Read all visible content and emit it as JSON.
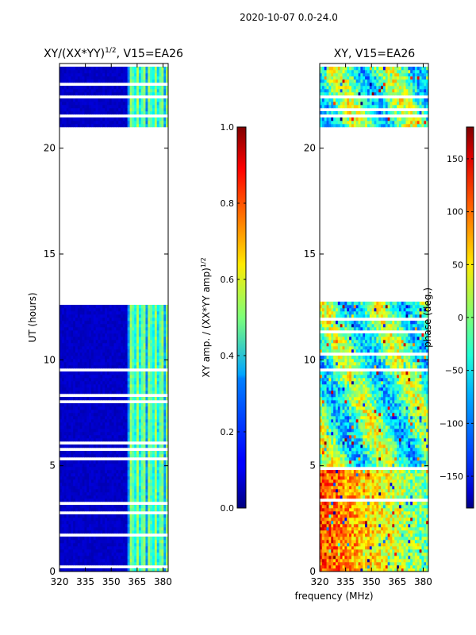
{
  "figure": {
    "suptitle": "2020-10-07 0.0-24.0",
    "shared_xlabel": "frequency (MHz)"
  },
  "chart_data": [
    {
      "type": "heatmap",
      "title_main": "XY/(XX*YY)",
      "title_sup": "1/2",
      "title_rest": ", V15=EA26",
      "xlabel": "",
      "ylabel": "UT (hours)",
      "xlim": [
        320,
        383
      ],
      "ylim": [
        0,
        24
      ],
      "xticks": [
        "320",
        "335",
        "350",
        "365",
        "380"
      ],
      "xtick_values": [
        320,
        335,
        350,
        365,
        380
      ],
      "yticks": [
        "0",
        "5",
        "10",
        "15",
        "20"
      ],
      "ytick_values": [
        0,
        5,
        10,
        15,
        20
      ],
      "quantity": "normalized XY amplitude",
      "valid_time_ranges": [
        [
          0.0,
          0.4
        ],
        [
          0.5,
          9.4
        ],
        [
          9.6,
          12.7
        ],
        [
          20.95,
          21.5
        ],
        [
          21.55,
          22.3
        ],
        [
          22.55,
          24.0
        ]
      ],
      "bright_frequency_band": [
        360,
        383
      ],
      "colorbar": {
        "label": "XY amp. / (XX*YY amp)",
        "label_sup": "1/2",
        "range": [
          0.0,
          1.0
        ],
        "ticks": [
          "0.0",
          "0.2",
          "0.4",
          "0.6",
          "0.8",
          "1.0"
        ],
        "tick_values": [
          0.0,
          0.2,
          0.4,
          0.6,
          0.8,
          1.0
        ]
      }
    },
    {
      "type": "heatmap",
      "title": "XY, V15=EA26",
      "xlabel": "",
      "ylabel": "",
      "xlim": [
        320,
        383
      ],
      "ylim": [
        0,
        24
      ],
      "xticks": [
        "320",
        "335",
        "350",
        "365",
        "380"
      ],
      "xtick_values": [
        320,
        335,
        350,
        365,
        380
      ],
      "yticks": [
        "0",
        "5",
        "10",
        "15",
        "20"
      ],
      "ytick_values": [
        0,
        5,
        10,
        15,
        20
      ],
      "quantity": "XY phase (deg.)",
      "valid_time_ranges": [
        [
          0.0,
          0.4
        ],
        [
          0.5,
          9.4
        ],
        [
          9.6,
          12.7
        ],
        [
          20.95,
          21.5
        ],
        [
          21.55,
          22.3
        ],
        [
          22.55,
          24.0
        ]
      ],
      "colorbar": {
        "label": "phase (deg.)",
        "range": [
          -180,
          180
        ],
        "ticks": [
          "150",
          "100",
          "50",
          "0",
          "−50",
          "−100",
          "−150"
        ],
        "tick_values": [
          150,
          100,
          50,
          0,
          -50,
          -100,
          -150
        ]
      }
    }
  ]
}
